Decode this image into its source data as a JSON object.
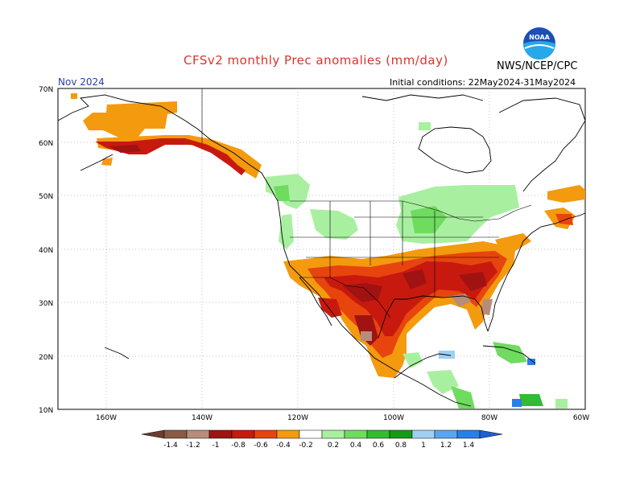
{
  "title": "CFSv2 monthly Prec anomalies (mm/day)",
  "agency": "NWS/NCEP/CPC",
  "valid_month": "Nov 2024",
  "initial_conditions": "Initial conditions: 22May2024-31May2024",
  "logo_text": "NOAA",
  "map": {
    "lat_ticks": [
      "70N",
      "60N",
      "50N",
      "40N",
      "30N",
      "20N",
      "10N"
    ],
    "lon_ticks": [
      "160W",
      "140W",
      "120W",
      "100W",
      "80W",
      "60W"
    ]
  },
  "colorbar": {
    "labels": [
      "-1.4",
      "-1.2",
      "-1",
      "-0.8",
      "-0.6",
      "-0.4",
      "-0.2",
      "0.2",
      "0.4",
      "0.6",
      "0.8",
      "1",
      "1.2",
      "1.4"
    ],
    "colors": [
      "#8a5a44",
      "#b88c7a",
      "#a11212",
      "#c8190f",
      "#e8440e",
      "#f39a0e",
      "#ffffff",
      "#a8f0a0",
      "#6fdb5f",
      "#33bb33",
      "#159a15",
      "#9fd0f2",
      "#5aa6ee",
      "#2a7fe6"
    ]
  }
}
